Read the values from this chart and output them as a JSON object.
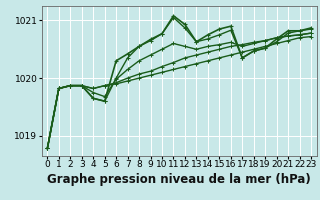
{
  "title": "Graphe pression niveau de la mer (hPa)",
  "bg_color": "#c8e8e8",
  "grid_color": "#ffffff",
  "line_color": "#1a5c1a",
  "xlim": [
    -0.5,
    23.5
  ],
  "ylim": [
    1018.65,
    1021.25
  ],
  "yticks": [
    1019,
    1020,
    1021
  ],
  "xticks": [
    0,
    1,
    2,
    3,
    4,
    5,
    6,
    7,
    8,
    9,
    10,
    11,
    12,
    13,
    14,
    15,
    16,
    17,
    18,
    19,
    20,
    21,
    22,
    23
  ],
  "series": [
    [
      1018.78,
      1019.82,
      1019.87,
      1019.87,
      1019.82,
      1019.87,
      1019.9,
      1019.95,
      1020.0,
      1020.05,
      1020.1,
      1020.15,
      1020.2,
      1020.25,
      1020.3,
      1020.35,
      1020.4,
      1020.45,
      1020.5,
      1020.55,
      1020.6,
      1020.65,
      1020.7,
      1020.72
    ],
    [
      1018.78,
      1019.82,
      1019.87,
      1019.87,
      1019.82,
      1019.87,
      1019.92,
      1020.0,
      1020.07,
      1020.12,
      1020.2,
      1020.27,
      1020.35,
      1020.4,
      1020.45,
      1020.5,
      1020.55,
      1020.58,
      1020.62,
      1020.65,
      1020.7,
      1020.73,
      1020.75,
      1020.78
    ],
    [
      1018.78,
      1019.82,
      1019.87,
      1019.87,
      1019.75,
      1019.68,
      1019.98,
      1020.15,
      1020.3,
      1020.4,
      1020.5,
      1020.6,
      1020.55,
      1020.5,
      1020.55,
      1020.58,
      1020.62,
      1020.55,
      1020.6,
      1020.65,
      1020.7,
      1020.73,
      1020.75,
      1020.78
    ],
    [
      1018.78,
      1019.82,
      1019.87,
      1019.87,
      1019.65,
      1019.6,
      1020.0,
      1020.35,
      1020.55,
      1020.65,
      1020.77,
      1021.05,
      1020.87,
      1020.63,
      1020.68,
      1020.75,
      1020.83,
      1020.35,
      1020.47,
      1020.52,
      1020.63,
      1020.78,
      1020.82,
      1020.85
    ]
  ],
  "spiky_series": [
    1018.78,
    1019.82,
    1019.87,
    1019.87,
    1019.65,
    1019.6,
    1020.3,
    1020.42,
    1020.55,
    1020.67,
    1020.77,
    1021.08,
    1020.93,
    1020.63,
    1020.75,
    1020.85,
    1020.9,
    1020.35,
    1020.47,
    1020.52,
    1020.68,
    1020.82,
    1020.82,
    1020.87
  ],
  "tick_fontsize": 6.5,
  "title_fontsize": 8.5
}
